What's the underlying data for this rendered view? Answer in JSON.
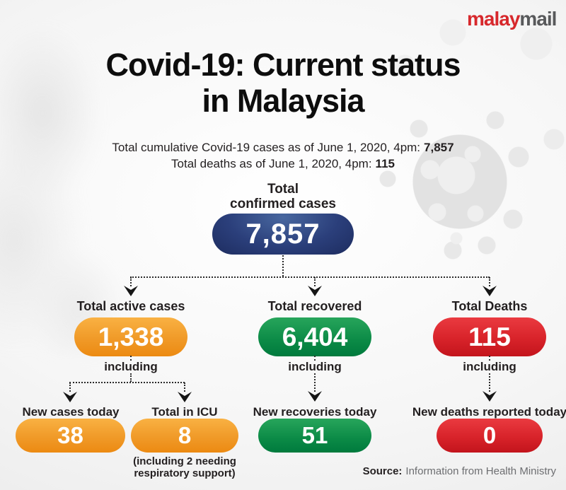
{
  "colors": {
    "brand_red": "#d7282c",
    "logo_gray": "#58595b",
    "navy": "#24356e",
    "orange": "#f0941f",
    "green": "#009444",
    "red": "#d71920",
    "text_dark": "#231f20",
    "muted_gray": "#6d6e71"
  },
  "logo": {
    "part1": "malay",
    "part2": "mail"
  },
  "title": {
    "line1": "Covid-19: Current status",
    "line2": "in Malaysia"
  },
  "subtitle": {
    "line1_text": "Total cumulative Covid-19 cases as of June 1, 2020, 4pm:",
    "line1_value": "7,857",
    "line2_text": "Total deaths as of June 1, 2020, 4pm:",
    "line2_value": "115"
  },
  "root": {
    "label_line1": "Total",
    "label_line2": "confirmed cases",
    "value": "7,857"
  },
  "branches": [
    {
      "label": "Total active cases",
      "value": "1,338",
      "connector": "including"
    },
    {
      "label": "Total recovered",
      "value": "6,404",
      "connector": "including"
    },
    {
      "label": "Total Deaths",
      "value": "115",
      "connector": "including"
    }
  ],
  "leaves": [
    {
      "label": "New cases today",
      "value": "38"
    },
    {
      "label": "Total in ICU",
      "value": "8",
      "note1": "(including 2 needing",
      "note2": "respiratory support)"
    },
    {
      "label": "New recoveries today",
      "value": "51"
    },
    {
      "label": "New deaths reported today",
      "value": "0"
    }
  ],
  "source": {
    "label": "Source:",
    "text": "Information from Health Ministry"
  }
}
